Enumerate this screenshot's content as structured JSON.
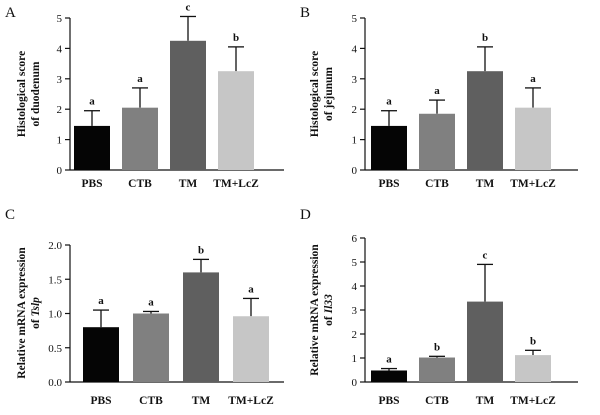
{
  "chart_data": [
    {
      "type": "bar",
      "panel": "A",
      "ylabel": [
        "Histological score",
        "of duodenum"
      ],
      "categories": [
        "PBS",
        "CTB",
        "TM",
        "TM+LcZ"
      ],
      "values": [
        1.45,
        2.05,
        4.25,
        3.25
      ],
      "errors": [
        0.5,
        0.65,
        0.8,
        0.8
      ],
      "significance": [
        "a",
        "a",
        "c",
        "b"
      ],
      "colors": [
        "#050505",
        "#808080",
        "#5f5f5f",
        "#c6c6c6"
      ],
      "ylim": [
        0,
        5
      ],
      "yticks": [
        "0",
        "1",
        "2",
        "3",
        "4",
        "5"
      ]
    },
    {
      "type": "bar",
      "panel": "B",
      "ylabel": [
        "Histological score",
        "of jejunum"
      ],
      "categories": [
        "PBS",
        "CTB",
        "TM",
        "TM+LcZ"
      ],
      "values": [
        1.45,
        1.85,
        3.25,
        2.05
      ],
      "errors": [
        0.5,
        0.45,
        0.8,
        0.65
      ],
      "significance": [
        "a",
        "a",
        "b",
        "a"
      ],
      "colors": [
        "#050505",
        "#808080",
        "#5f5f5f",
        "#c6c6c6"
      ],
      "ylim": [
        0,
        5
      ],
      "yticks": [
        "0",
        "1",
        "2",
        "3",
        "4",
        "5"
      ]
    },
    {
      "type": "bar",
      "panel": "C",
      "ylabel": [
        "Relative mRNA expression",
        "of Tslp"
      ],
      "ylabel_italic": "Tslp",
      "categories": [
        "PBS",
        "CTB",
        "TM",
        "TM+LcZ"
      ],
      "values": [
        0.8,
        1.0,
        1.6,
        0.96
      ],
      "errors": [
        0.25,
        0.03,
        0.19,
        0.26
      ],
      "significance": [
        "a",
        "a",
        "b",
        "a"
      ],
      "colors": [
        "#050505",
        "#808080",
        "#5f5f5f",
        "#c6c6c6"
      ],
      "ylim": [
        0,
        2.0
      ],
      "yticks": [
        "0.0",
        "0.5",
        "1.0",
        "1.5",
        "2.0"
      ]
    },
    {
      "type": "bar",
      "panel": "D",
      "ylabel": [
        "Relative mRNA expression",
        "of Il33"
      ],
      "ylabel_italic": "Il33",
      "categories": [
        "PBS",
        "CTB",
        "TM",
        "TM+LcZ"
      ],
      "values": [
        0.48,
        1.02,
        3.35,
        1.12
      ],
      "errors": [
        0.08,
        0.05,
        1.55,
        0.2
      ],
      "significance": [
        "a",
        "b",
        "c",
        "b"
      ],
      "colors": [
        "#050505",
        "#808080",
        "#5f5f5f",
        "#c6c6c6"
      ],
      "ylim": [
        0,
        6
      ],
      "yticks": [
        "0",
        "1",
        "2",
        "3",
        "4",
        "5",
        "6"
      ]
    }
  ]
}
